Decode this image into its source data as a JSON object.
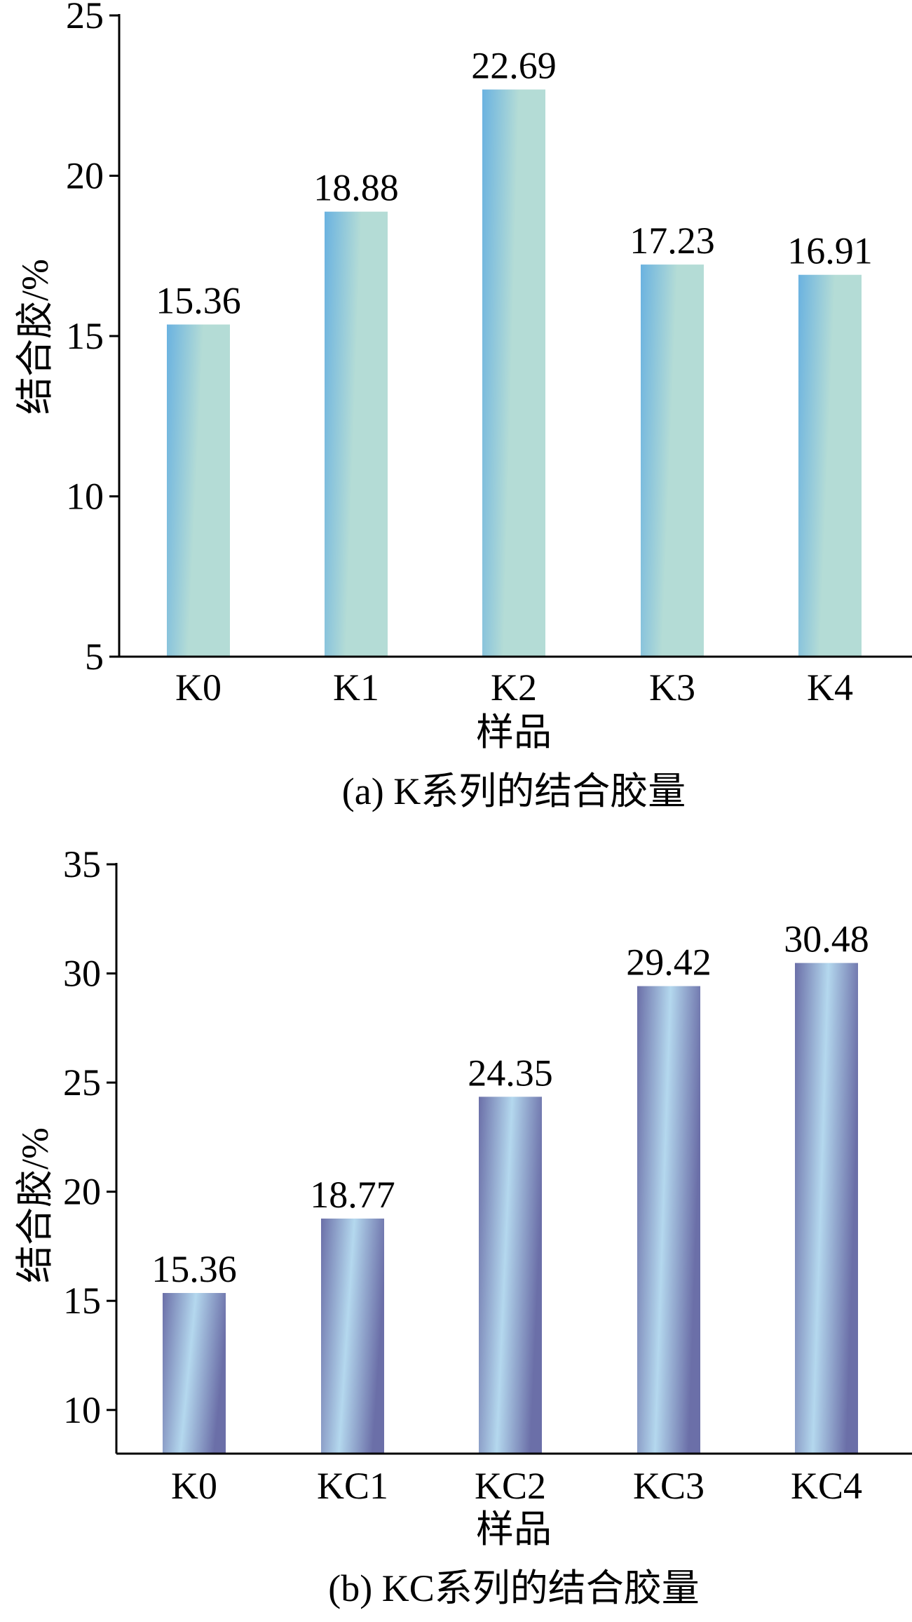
{
  "chart_data": [
    {
      "type": "bar",
      "caption": "(a) K系列的结合胶量",
      "xlabel": "样品",
      "ylabel": "结合胶/%",
      "categories": [
        "K0",
        "K1",
        "K2",
        "K3",
        "K4"
      ],
      "values": [
        15.36,
        18.88,
        22.69,
        17.23,
        16.91
      ],
      "data_labels": [
        "15.36",
        "18.88",
        "22.69",
        "17.23",
        "16.91"
      ],
      "ylim": [
        5,
        25
      ],
      "yticks": [
        5,
        10,
        15,
        20,
        25
      ],
      "grid": false,
      "colors": {
        "bar_light": "#b4dcd6",
        "bar_dark": "#6ab2e0"
      }
    },
    {
      "type": "bar",
      "caption": "(b) KC系列的结合胶量",
      "xlabel": "样品",
      "ylabel": "结合胶/%",
      "categories": [
        "K0",
        "KC1",
        "KC2",
        "KC3",
        "KC4"
      ],
      "values": [
        15.36,
        18.77,
        24.35,
        29.42,
        30.48
      ],
      "data_labels": [
        "15.36",
        "18.77",
        "24.35",
        "29.42",
        "30.48"
      ],
      "ylim": [
        8,
        35
      ],
      "yticks": [
        10,
        15,
        20,
        25,
        30,
        35
      ],
      "grid": false,
      "colors": {
        "bar_light": "#b4d8ee",
        "bar_dark": "#6b6fa8"
      }
    }
  ]
}
